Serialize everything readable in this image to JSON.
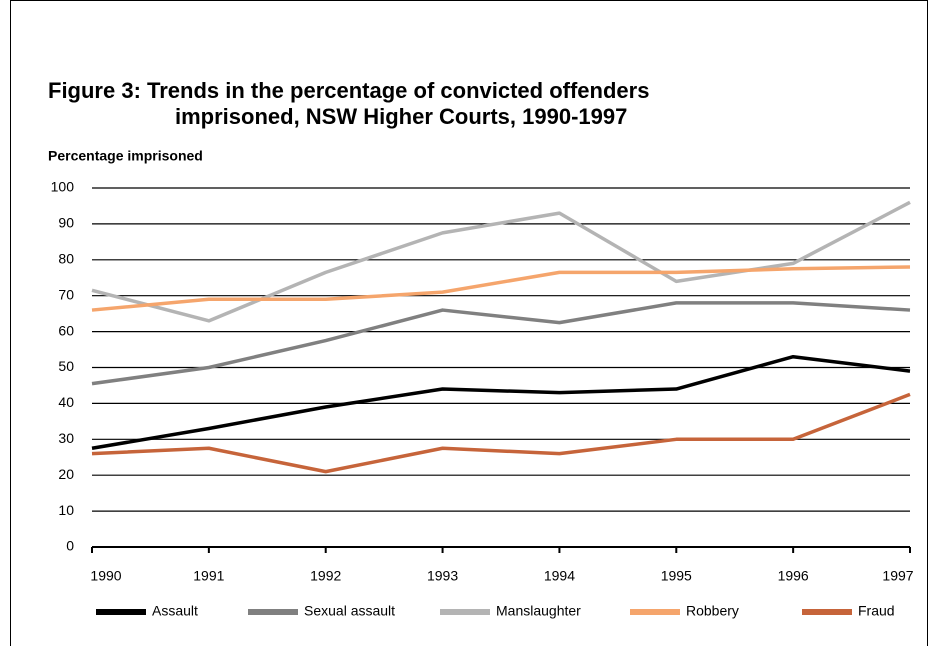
{
  "chart_data": {
    "type": "line",
    "title": [
      "Figure 3:  Trends in the percentage of convicted offenders",
      "imprisoned, NSW Higher Courts, 1990-1997"
    ],
    "y_label": "Percentage imprisoned",
    "categories": [
      "1990",
      "1991",
      "1992",
      "1993",
      "1994",
      "1995",
      "1996",
      "1997"
    ],
    "series": [
      {
        "name": "Assault",
        "color": "#000000",
        "values": [
          27.5,
          33,
          39,
          44,
          43,
          44,
          53,
          49
        ]
      },
      {
        "name": "Sexual assault",
        "color": "#808080",
        "values": [
          45.5,
          50,
          57.5,
          66,
          62.5,
          68,
          68,
          66
        ]
      },
      {
        "name": "Manslaughter",
        "color": "#b4b4b4",
        "values": [
          71.5,
          63,
          76.5,
          87.5,
          93,
          74,
          79,
          96
        ]
      },
      {
        "name": "Robbery",
        "color": "#f5a56c",
        "values": [
          66,
          69,
          69,
          71,
          76.5,
          76.5,
          77.5,
          78
        ]
      },
      {
        "name": "Fraud",
        "color": "#c6643a",
        "values": [
          26,
          27.5,
          21,
          27.5,
          26,
          30,
          30,
          42.5
        ]
      }
    ],
    "ylim": [
      0,
      100
    ],
    "yticks": [
      0,
      10,
      20,
      30,
      40,
      50,
      60,
      70,
      80,
      90,
      100
    ],
    "grid": true
  }
}
